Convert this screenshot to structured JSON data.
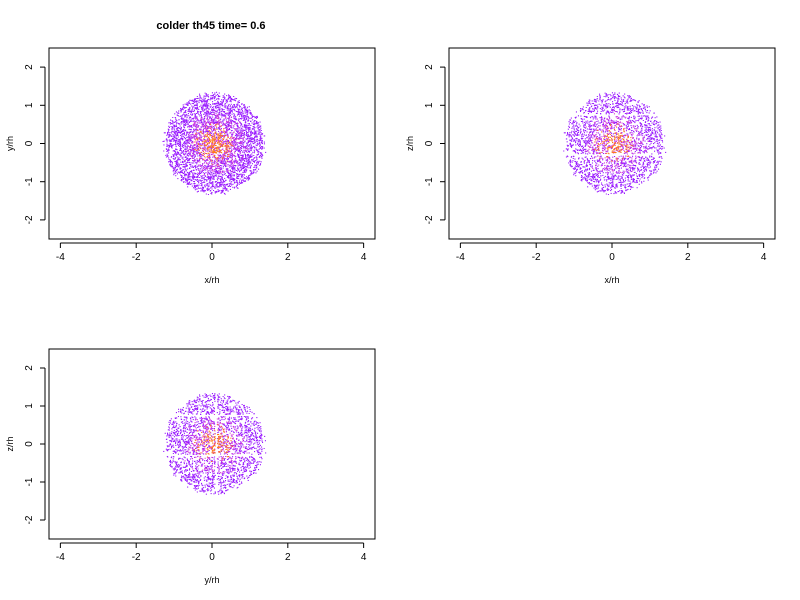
{
  "title": "colder th45 time= 0.6",
  "colors": {
    "low": "#9a1cff",
    "mid": "#d63cd6",
    "high": "#ff7a1a",
    "frame": "#000000"
  },
  "chart_data": [
    {
      "type": "scatter",
      "panel": "top-left",
      "xlabel": "x/rh",
      "ylabel": "y/rh",
      "xlim": [
        -4.3,
        4.3
      ],
      "ylim": [
        -2.5,
        2.5
      ],
      "xticks": [
        -4,
        -2,
        0,
        2,
        4
      ],
      "yticks": [
        -2,
        -1,
        0,
        1,
        2
      ],
      "center": [
        0.05,
        0.0
      ],
      "radius": 1.3,
      "gaps": []
    },
    {
      "type": "scatter",
      "panel": "top-right",
      "xlabel": "x/rh",
      "ylabel": "z/rh",
      "xlim": [
        -4.3,
        4.3
      ],
      "ylim": [
        -2.5,
        2.5
      ],
      "xticks": [
        -4,
        -2,
        0,
        2,
        4
      ],
      "yticks": [
        -2,
        -1,
        0,
        1,
        2
      ],
      "center": [
        0.05,
        0.0
      ],
      "radius": 1.3,
      "gaps": [
        {
          "axis": "y",
          "value": 0.75
        },
        {
          "axis": "y",
          "value": -0.3
        }
      ]
    },
    {
      "type": "scatter",
      "panel": "bottom-left",
      "xlabel": "y/rh",
      "ylabel": "z/rh",
      "xlim": [
        -4.3,
        4.3
      ],
      "ylim": [
        -2.5,
        2.5
      ],
      "xticks": [
        -4,
        -2,
        0,
        2,
        4
      ],
      "yticks": [
        -2,
        -1,
        0,
        1,
        2
      ],
      "center": [
        0.05,
        0.0
      ],
      "radius": 1.3,
      "gaps": [
        {
          "axis": "y",
          "value": 0.75
        },
        {
          "axis": "y",
          "value": -0.3
        },
        {
          "axis": "x",
          "value": 0.1
        }
      ]
    }
  ]
}
